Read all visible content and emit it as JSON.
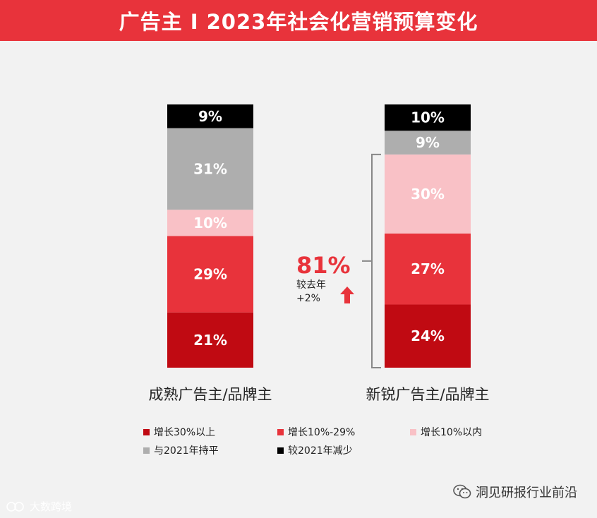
{
  "header": {
    "title": "广告主 I 2023年社会化营销预算变化"
  },
  "chart_data": {
    "type": "bar",
    "stacked": true,
    "normalized": true,
    "categories": [
      "成熟广告主/品牌主",
      "新锐广告主/品牌主"
    ],
    "series": [
      {
        "name": "增长30%以上",
        "values": [
          21,
          24
        ],
        "labels": [
          "21%",
          "24%"
        ],
        "color": "#c00a12"
      },
      {
        "name": "增长10%-29%",
        "values": [
          29,
          27
        ],
        "labels": [
          "29%",
          "27%"
        ],
        "color": "#e8333b"
      },
      {
        "name": "增长10%以内",
        "values": [
          10,
          30
        ],
        "labels": [
          "10%",
          "30%"
        ],
        "color": "#f9c1c6"
      },
      {
        "name": "与2021年持平",
        "values": [
          31,
          9
        ],
        "labels": [
          "31%",
          "9%"
        ],
        "color": "#aeaeae"
      },
      {
        "name": "较2021年减少",
        "values": [
          9,
          10
        ],
        "labels": [
          "9%",
          "10%"
        ],
        "color": "#000000"
      }
    ],
    "legend": {
      "position": "bottom"
    },
    "grid": false
  },
  "callout": {
    "value": "81%",
    "line1": "较去年",
    "line2": "+2%",
    "icon": "up-arrow-icon"
  },
  "footer": {
    "right_text": "洞见研报行业前沿",
    "right_icon": "wechat-icon",
    "left_text": "大数跨境",
    "left_icon": "brand-logo-icon"
  }
}
